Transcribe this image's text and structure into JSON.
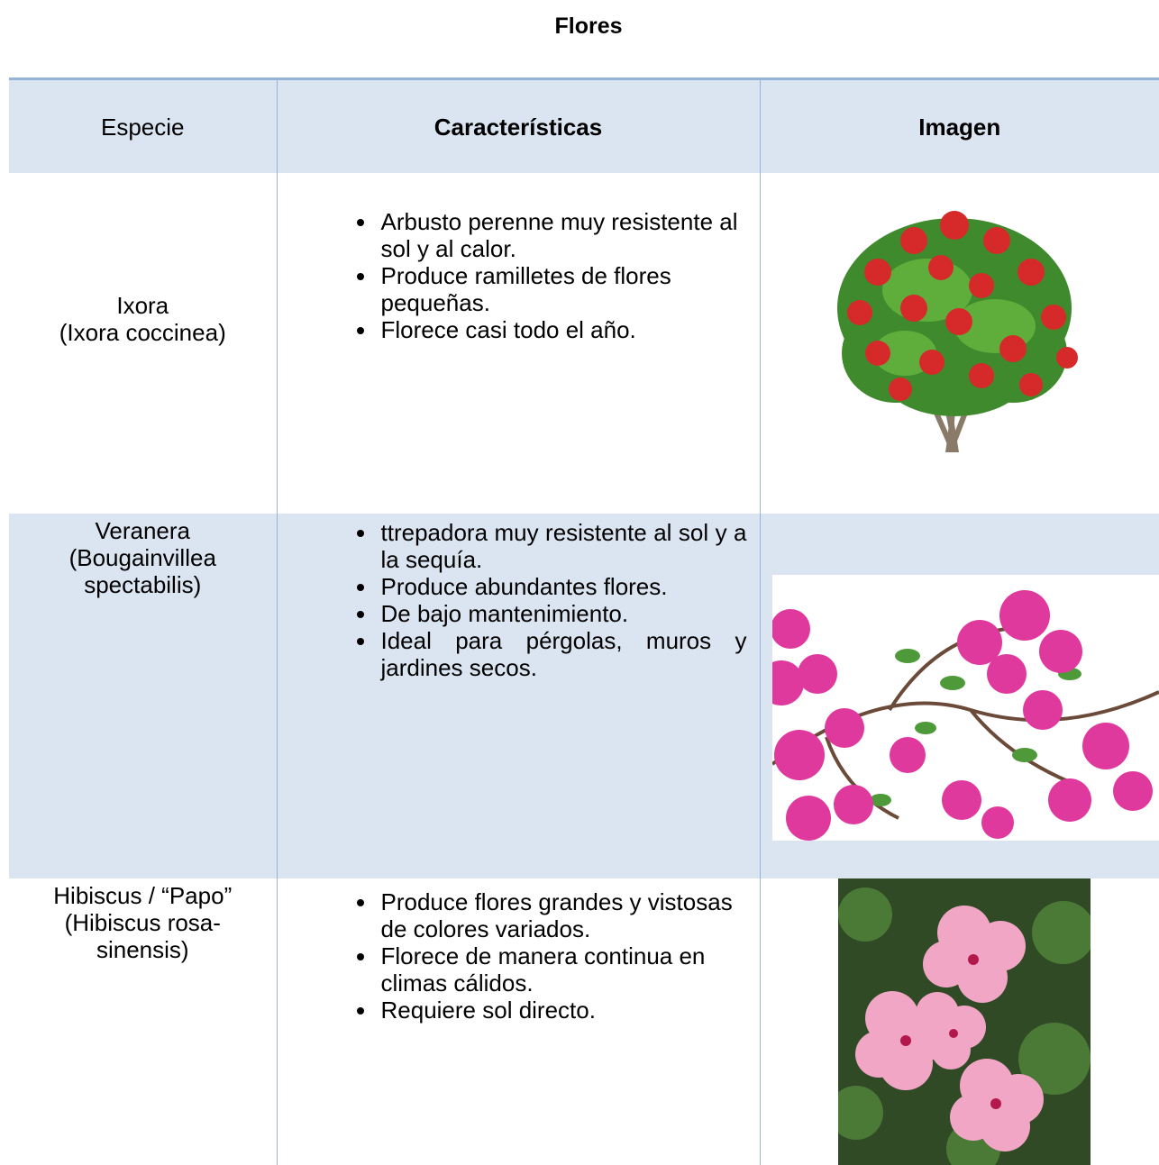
{
  "title": "Flores",
  "table": {
    "headers": [
      "Especie",
      "Características",
      "Imagen"
    ],
    "rows": [
      {
        "species": [
          "Ixora",
          "(Ixora coccinea)"
        ],
        "features": [
          "Arbusto perenne muy resistente al sol y al calor.",
          "Produce ramilletes de flores pequeñas.",
          "Florece casi todo el año."
        ]
      },
      {
        "species": [
          "Veranera",
          "(Bougainvillea spectabilis)"
        ],
        "features": [
          "ttrepadora muy resistente al sol y a la sequía.",
          "Produce abundantes flores.",
          "De bajo mantenimiento.",
          "Ideal para pérgolas, muros y jardines secos."
        ]
      },
      {
        "species": [
          "Hibiscus / “Papo”",
          "(Hibiscus rosa-sinensis)"
        ],
        "features": [
          "Produce flores grandes y vistosas de colores variados.",
          "Florece de manera continua en climas cálidos.",
          "Requiere sol directo."
        ]
      }
    ]
  }
}
